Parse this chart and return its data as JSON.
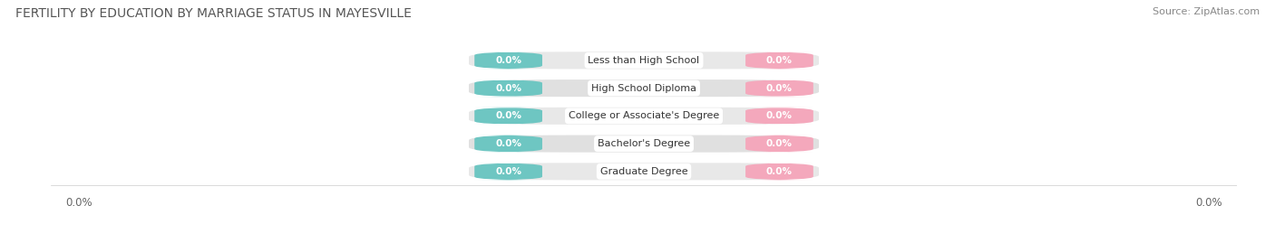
{
  "title": "FERTILITY BY EDUCATION BY MARRIAGE STATUS IN MAYESVILLE",
  "source": "Source: ZipAtlas.com",
  "categories": [
    "Less than High School",
    "High School Diploma",
    "College or Associate's Degree",
    "Bachelor's Degree",
    "Graduate Degree"
  ],
  "married_values": [
    0.0,
    0.0,
    0.0,
    0.0,
    0.0
  ],
  "unmarried_values": [
    0.0,
    0.0,
    0.0,
    0.0,
    0.0
  ],
  "married_color": "#6ec6c2",
  "unmarried_color": "#f4a8bc",
  "row_bg_even": "#eeeeee",
  "row_bg_odd": "#e4e4e4",
  "category_text_color": "#333333",
  "title_color": "#555555",
  "title_fontsize": 10,
  "source_fontsize": 8,
  "legend_fontsize": 9,
  "bar_height": 0.62,
  "background_color": "#ffffff"
}
